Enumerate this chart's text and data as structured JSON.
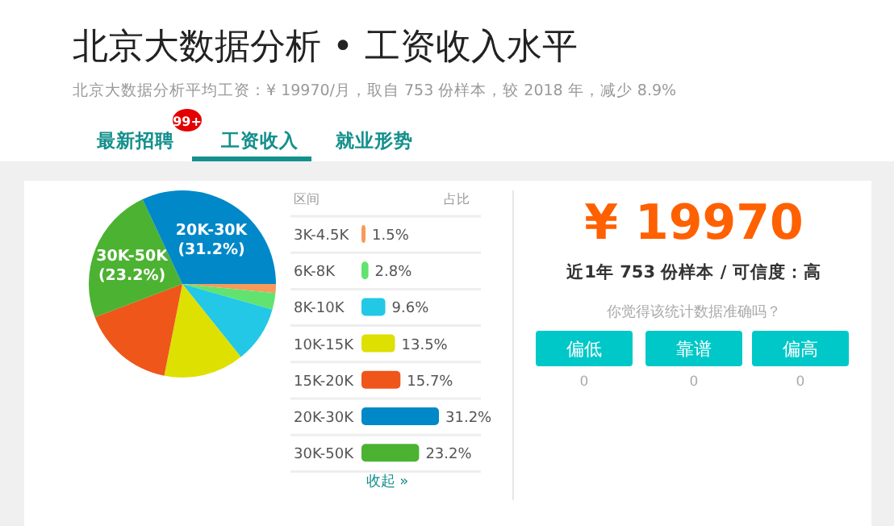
{
  "chart_data": [
    {
      "type": "pie",
      "title": "北京大数据分析 • 工资收入水平",
      "subtitle": "北京大数据分析平均工资：¥ 19970/月，取自 753 份样本，较 2018 年，减少 8.9%",
      "annotations": [
        "最新招聘",
        "99+",
        "工资收入",
        "就业形势"
      ],
      "categories": [
        null,
        null,
        null,
        null,
        null,
        "30K-50K",
        "20K-30K"
      ],
      "values": [
        1.5,
        2.8,
        9.6,
        13.5,
        15.7,
        23.2,
        31.2
      ],
      "value_labels": [
        null,
        null,
        null,
        null,
        null,
        "(23.2%)",
        "(31.2%)"
      ],
      "colors": [
        "#f79a5a",
        "#62e36f",
        "#22c8e6",
        "#dde000",
        "#ee561a",
        "#4cb232",
        "#0088c8"
      ]
    },
    {
      "type": "bar",
      "orientation": "horizontal",
      "ylabel": "区间",
      "xlabel": "占比",
      "annotations": [
        "收起 »"
      ],
      "categories": [
        "3K-4.5K",
        "6K-8K",
        "8K-10K",
        "10K-15K",
        "15K-20K",
        "20K-30K",
        "30K-50K"
      ],
      "values": [
        1.5,
        2.8,
        9.6,
        13.5,
        15.7,
        31.2,
        23.2
      ],
      "value_labels": [
        "1.5%",
        "2.8%",
        "9.6%",
        "13.5%",
        "15.7%",
        "31.2%",
        "23.2%"
      ],
      "colors": [
        "#f79a5a",
        "#62e36f",
        "#22c8e6",
        "#dde000",
        "#ee561a",
        "#0088c8",
        "#4cb232"
      ]
    },
    {
      "type": "other",
      "title": "¥ 19970",
      "subtitle": "近1年 753 份样本 / 可信度：高",
      "annotations": [
        "你觉得该统计数据准确吗？",
        "偏低",
        "靠谱",
        "偏高",
        "0",
        "0",
        "0"
      ]
    }
  ]
}
